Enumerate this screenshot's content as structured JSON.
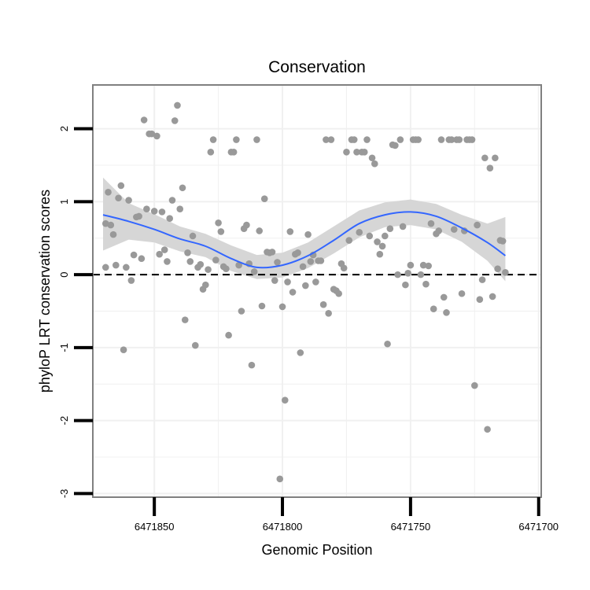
{
  "chart_data": {
    "type": "scatter",
    "title": "Conservation",
    "xlabel": "Genomic Position",
    "ylabel": "phyloP LRT conservation scores",
    "x_reversed": true,
    "xlim": [
      6471699,
      6471874
    ],
    "ylim": [
      -3.05,
      2.6
    ],
    "x_ticks": [
      {
        "value": 6471850,
        "label": "6471850"
      },
      {
        "value": 6471800,
        "label": "6471800"
      },
      {
        "value": 6471750,
        "label": "6471750"
      },
      {
        "value": 6471700,
        "label": "6471700"
      }
    ],
    "y_ticks": [
      {
        "value": 2,
        "label": "2"
      },
      {
        "value": 1,
        "label": "1"
      },
      {
        "value": 0,
        "label": "0"
      },
      {
        "value": -1,
        "label": "-1"
      },
      {
        "value": -2,
        "label": "-2"
      },
      {
        "value": -3,
        "label": "-3"
      }
    ],
    "reference_line": {
      "y": 0,
      "style": "dashed"
    },
    "colors": {
      "points": "#999999",
      "smooth_line": "#3366ff",
      "confidence_band": "#d4d4d4",
      "panel_border": "#808080",
      "grid": "#f0f0f0"
    },
    "points": [
      {
        "x": 6471869,
        "y": 0.1
      },
      {
        "x": 6471868,
        "y": 1.13
      },
      {
        "x": 6471869,
        "y": 0.7
      },
      {
        "x": 6471867,
        "y": 0.68
      },
      {
        "x": 6471866,
        "y": 0.55
      },
      {
        "x": 6471865,
        "y": 0.13
      },
      {
        "x": 6471864,
        "y": 1.05
      },
      {
        "x": 6471863,
        "y": 1.22
      },
      {
        "x": 6471862,
        "y": -1.03
      },
      {
        "x": 6471861,
        "y": 0.1
      },
      {
        "x": 6471860,
        "y": 1.02
      },
      {
        "x": 6471859,
        "y": -0.08
      },
      {
        "x": 6471858,
        "y": 0.27
      },
      {
        "x": 6471857,
        "y": 0.79
      },
      {
        "x": 6471856,
        "y": 0.8
      },
      {
        "x": 6471855,
        "y": 0.22
      },
      {
        "x": 6471854,
        "y": 2.12
      },
      {
        "x": 6471853,
        "y": 0.9
      },
      {
        "x": 6471852,
        "y": 1.93
      },
      {
        "x": 6471851,
        "y": 1.93
      },
      {
        "x": 6471850,
        "y": 0.87
      },
      {
        "x": 6471849,
        "y": 1.9
      },
      {
        "x": 6471848,
        "y": 0.28
      },
      {
        "x": 6471847,
        "y": 0.86
      },
      {
        "x": 6471846,
        "y": 0.34
      },
      {
        "x": 6471845,
        "y": 0.18
      },
      {
        "x": 6471844,
        "y": 0.77
      },
      {
        "x": 6471843,
        "y": 1.02
      },
      {
        "x": 6471842,
        "y": 2.11
      },
      {
        "x": 6471841,
        "y": 2.32
      },
      {
        "x": 6471840,
        "y": 0.9
      },
      {
        "x": 6471839,
        "y": 1.19
      },
      {
        "x": 6471838,
        "y": -0.62
      },
      {
        "x": 6471837,
        "y": 0.3
      },
      {
        "x": 6471836,
        "y": 0.18
      },
      {
        "x": 6471835,
        "y": 0.53
      },
      {
        "x": 6471834,
        "y": -0.97
      },
      {
        "x": 6471833,
        "y": 0.1
      },
      {
        "x": 6471832,
        "y": 0.14
      },
      {
        "x": 6471831,
        "y": -0.2
      },
      {
        "x": 6471830,
        "y": -0.14
      },
      {
        "x": 6471829,
        "y": 0.07
      },
      {
        "x": 6471828,
        "y": 1.68
      },
      {
        "x": 6471827,
        "y": 1.85
      },
      {
        "x": 6471826,
        "y": 0.2
      },
      {
        "x": 6471825,
        "y": 0.71
      },
      {
        "x": 6471824,
        "y": 0.59
      },
      {
        "x": 6471823,
        "y": 0.11
      },
      {
        "x": 6471822,
        "y": 0.08
      },
      {
        "x": 6471821,
        "y": -0.83
      },
      {
        "x": 6471820,
        "y": 1.68
      },
      {
        "x": 6471819,
        "y": 1.68
      },
      {
        "x": 6471818,
        "y": 1.85
      },
      {
        "x": 6471817,
        "y": 0.13
      },
      {
        "x": 6471816,
        "y": -0.5
      },
      {
        "x": 6471815,
        "y": 0.63
      },
      {
        "x": 6471814,
        "y": 0.68
      },
      {
        "x": 6471813,
        "y": 0.15
      },
      {
        "x": 6471812,
        "y": -1.24
      },
      {
        "x": 6471811,
        "y": 0.04
      },
      {
        "x": 6471810,
        "y": 1.85
      },
      {
        "x": 6471809,
        "y": 0.6
      },
      {
        "x": 6471808,
        "y": -0.43
      },
      {
        "x": 6471807,
        "y": 1.04
      },
      {
        "x": 6471806,
        "y": 0.31
      },
      {
        "x": 6471805,
        "y": 0.3
      },
      {
        "x": 6471804,
        "y": 0.31
      },
      {
        "x": 6471803,
        "y": -0.08
      },
      {
        "x": 6471802,
        "y": 0.17
      },
      {
        "x": 6471801,
        "y": -2.8
      },
      {
        "x": 6471800,
        "y": -0.44
      },
      {
        "x": 6471799,
        "y": -1.72
      },
      {
        "x": 6471798,
        "y": -0.1
      },
      {
        "x": 6471797,
        "y": 0.59
      },
      {
        "x": 6471796,
        "y": -0.24
      },
      {
        "x": 6471795,
        "y": 0.28
      },
      {
        "x": 6471794,
        "y": 0.3
      },
      {
        "x": 6471793,
        "y": -1.07
      },
      {
        "x": 6471792,
        "y": 0.11
      },
      {
        "x": 6471791,
        "y": -0.15
      },
      {
        "x": 6471790,
        "y": 0.55
      },
      {
        "x": 6471789,
        "y": 0.18
      },
      {
        "x": 6471788,
        "y": 0.27
      },
      {
        "x": 6471787,
        "y": -0.1
      },
      {
        "x": 6471786,
        "y": 0.19
      },
      {
        "x": 6471785,
        "y": 0.19
      },
      {
        "x": 6471784,
        "y": -0.41
      },
      {
        "x": 6471783,
        "y": 1.85
      },
      {
        "x": 6471782,
        "y": -0.53
      },
      {
        "x": 6471781,
        "y": 1.85
      },
      {
        "x": 6471780,
        "y": -0.2
      },
      {
        "x": 6471779,
        "y": -0.22
      },
      {
        "x": 6471778,
        "y": -0.26
      },
      {
        "x": 6471777,
        "y": 0.15
      },
      {
        "x": 6471776,
        "y": 0.09
      },
      {
        "x": 6471775,
        "y": 1.68
      },
      {
        "x": 6471774,
        "y": 0.47
      },
      {
        "x": 6471773,
        "y": 1.85
      },
      {
        "x": 6471772,
        "y": 1.85
      },
      {
        "x": 6471771,
        "y": 1.68
      },
      {
        "x": 6471770,
        "y": 0.58
      },
      {
        "x": 6471769,
        "y": 1.68
      },
      {
        "x": 6471768,
        "y": 1.68
      },
      {
        "x": 6471767,
        "y": 1.85
      },
      {
        "x": 6471766,
        "y": 0.53
      },
      {
        "x": 6471765,
        "y": 1.6
      },
      {
        "x": 6471764,
        "y": 1.52
      },
      {
        "x": 6471763,
        "y": 0.45
      },
      {
        "x": 6471762,
        "y": 0.28
      },
      {
        "x": 6471761,
        "y": 0.39
      },
      {
        "x": 6471760,
        "y": 0.53
      },
      {
        "x": 6471759,
        "y": -0.95
      },
      {
        "x": 6471758,
        "y": 0.63
      },
      {
        "x": 6471757,
        "y": 1.78
      },
      {
        "x": 6471756,
        "y": 1.77
      },
      {
        "x": 6471755,
        "y": 0.0
      },
      {
        "x": 6471754,
        "y": 1.85
      },
      {
        "x": 6471753,
        "y": 0.66
      },
      {
        "x": 6471752,
        "y": -0.14
      },
      {
        "x": 6471751,
        "y": 0.02
      },
      {
        "x": 6471750,
        "y": 0.13
      },
      {
        "x": 6471749,
        "y": 1.85
      },
      {
        "x": 6471748,
        "y": 1.85
      },
      {
        "x": 6471747,
        "y": 1.85
      },
      {
        "x": 6471746,
        "y": 0.0
      },
      {
        "x": 6471745,
        "y": 0.13
      },
      {
        "x": 6471744,
        "y": -0.13
      },
      {
        "x": 6471743,
        "y": 0.12
      },
      {
        "x": 6471742,
        "y": 0.7
      },
      {
        "x": 6471741,
        "y": -0.47
      },
      {
        "x": 6471740,
        "y": 0.56
      },
      {
        "x": 6471739,
        "y": 0.6
      },
      {
        "x": 6471738,
        "y": 1.85
      },
      {
        "x": 6471737,
        "y": -0.31
      },
      {
        "x": 6471736,
        "y": -0.52
      },
      {
        "x": 6471735,
        "y": 1.85
      },
      {
        "x": 6471734,
        "y": 1.85
      },
      {
        "x": 6471733,
        "y": 0.62
      },
      {
        "x": 6471732,
        "y": 1.85
      },
      {
        "x": 6471731,
        "y": 1.85
      },
      {
        "x": 6471730,
        "y": -0.26
      },
      {
        "x": 6471729,
        "y": 0.6
      },
      {
        "x": 6471728,
        "y": 1.85
      },
      {
        "x": 6471727,
        "y": 1.85
      },
      {
        "x": 6471726,
        "y": 1.85
      },
      {
        "x": 6471725,
        "y": -1.52
      },
      {
        "x": 6471724,
        "y": 0.68
      },
      {
        "x": 6471723,
        "y": -0.34
      },
      {
        "x": 6471722,
        "y": -0.07
      },
      {
        "x": 6471721,
        "y": 1.6
      },
      {
        "x": 6471720,
        "y": -2.12
      },
      {
        "x": 6471719,
        "y": 1.46
      },
      {
        "x": 6471718,
        "y": -0.3
      },
      {
        "x": 6471717,
        "y": 1.6
      },
      {
        "x": 6471716,
        "y": 0.08
      },
      {
        "x": 6471715,
        "y": 0.47
      },
      {
        "x": 6471714,
        "y": 0.46
      },
      {
        "x": 6471713,
        "y": 0.03
      }
    ],
    "smooth_series": {
      "name": "loess fit",
      "points": [
        {
          "x": 6471870,
          "y": 0.82,
          "lo": 0.33,
          "hi": 1.33
        },
        {
          "x": 6471860,
          "y": 0.73,
          "lo": 0.48,
          "hi": 0.98
        },
        {
          "x": 6471850,
          "y": 0.62,
          "lo": 0.44,
          "hi": 0.83
        },
        {
          "x": 6471840,
          "y": 0.49,
          "lo": 0.32,
          "hi": 0.66
        },
        {
          "x": 6471830,
          "y": 0.39,
          "lo": 0.24,
          "hi": 0.56
        },
        {
          "x": 6471820,
          "y": 0.22,
          "lo": 0.05,
          "hi": 0.4
        },
        {
          "x": 6471810,
          "y": 0.1,
          "lo": -0.06,
          "hi": 0.27
        },
        {
          "x": 6471800,
          "y": 0.13,
          "lo": -0.04,
          "hi": 0.3
        },
        {
          "x": 6471790,
          "y": 0.26,
          "lo": 0.09,
          "hi": 0.44
        },
        {
          "x": 6471780,
          "y": 0.47,
          "lo": 0.29,
          "hi": 0.66
        },
        {
          "x": 6471770,
          "y": 0.7,
          "lo": 0.51,
          "hi": 0.88
        },
        {
          "x": 6471760,
          "y": 0.82,
          "lo": 0.65,
          "hi": 0.99
        },
        {
          "x": 6471750,
          "y": 0.86,
          "lo": 0.68,
          "hi": 1.03
        },
        {
          "x": 6471740,
          "y": 0.8,
          "lo": 0.62,
          "hi": 0.97
        },
        {
          "x": 6471730,
          "y": 0.64,
          "lo": 0.45,
          "hi": 0.82
        },
        {
          "x": 6471720,
          "y": 0.44,
          "lo": 0.19,
          "hi": 0.7
        },
        {
          "x": 6471713,
          "y": 0.26,
          "lo": -0.09,
          "hi": 0.79
        }
      ]
    }
  }
}
